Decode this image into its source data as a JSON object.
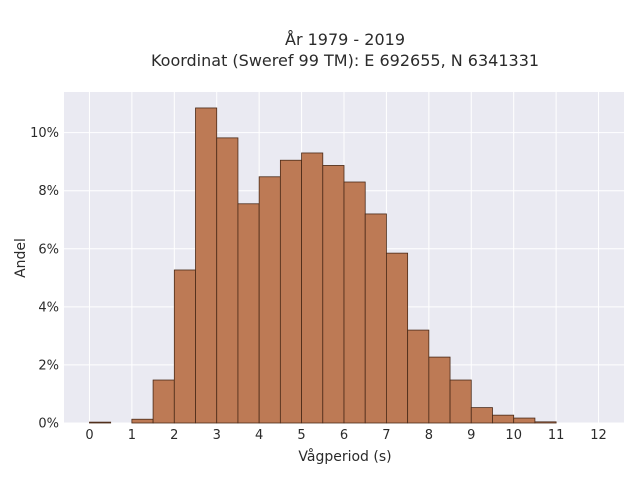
{
  "chart_data": {
    "type": "bar",
    "title_lines": [
      "År 1979 - 2019",
      "Koordinat (Sweref 99 TM): E 692655, N 6341331"
    ],
    "xlabel": "Vågperiod (s)",
    "ylabel": "Andel",
    "xlim": [
      -0.6,
      12.6
    ],
    "ylim": [
      0,
      11.4
    ],
    "x_ticks": [
      0,
      1,
      2,
      3,
      4,
      5,
      6,
      7,
      8,
      9,
      10,
      11,
      12
    ],
    "x_tick_labels": [
      "0",
      "1",
      "2",
      "3",
      "4",
      "5",
      "6",
      "7",
      "8",
      "9",
      "10",
      "11",
      "12"
    ],
    "y_ticks": [
      0,
      2,
      4,
      6,
      8,
      10
    ],
    "y_tick_labels": [
      "0%",
      "2%",
      "4%",
      "6%",
      "8%",
      "10%"
    ],
    "grid": true,
    "bar_width": 0.5,
    "bars": [
      {
        "x": 0.0,
        "value": 0.03
      },
      {
        "x": 1.0,
        "value": 0.13
      },
      {
        "x": 1.5,
        "value": 1.48
      },
      {
        "x": 2.0,
        "value": 5.27
      },
      {
        "x": 2.5,
        "value": 10.85
      },
      {
        "x": 3.0,
        "value": 9.82
      },
      {
        "x": 3.5,
        "value": 7.55
      },
      {
        "x": 4.0,
        "value": 8.48
      },
      {
        "x": 4.5,
        "value": 9.05
      },
      {
        "x": 5.0,
        "value": 9.3
      },
      {
        "x": 5.5,
        "value": 8.87
      },
      {
        "x": 6.0,
        "value": 8.3
      },
      {
        "x": 6.5,
        "value": 7.2
      },
      {
        "x": 7.0,
        "value": 5.85
      },
      {
        "x": 7.5,
        "value": 3.2
      },
      {
        "x": 8.0,
        "value": 2.27
      },
      {
        "x": 8.5,
        "value": 1.48
      },
      {
        "x": 9.0,
        "value": 0.53
      },
      {
        "x": 9.5,
        "value": 0.27
      },
      {
        "x": 10.0,
        "value": 0.17
      },
      {
        "x": 10.5,
        "value": 0.04
      }
    ],
    "colors": {
      "bar_fill": "#bd7a55",
      "bar_edge": "#4a2a18",
      "plot_background": "#eaeaf2",
      "grid": "#ffffff"
    }
  }
}
